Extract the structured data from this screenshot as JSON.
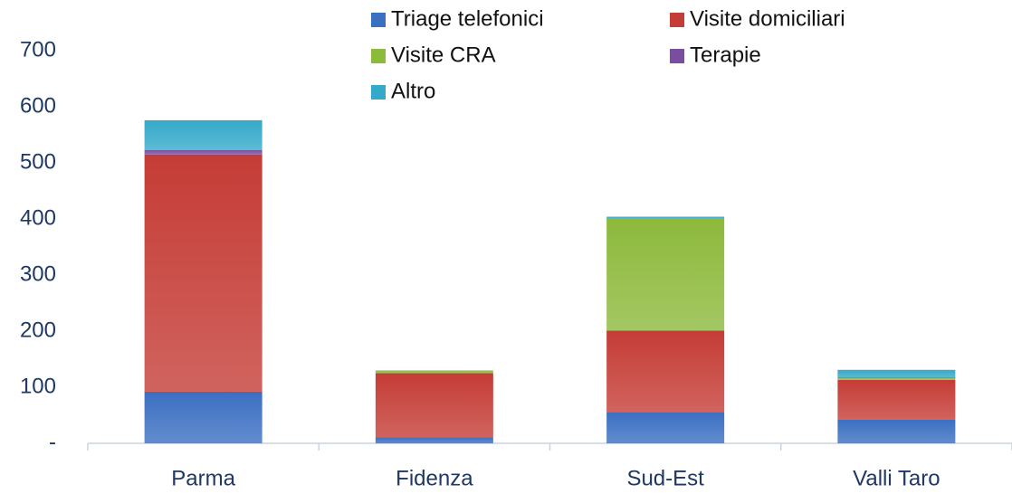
{
  "chart_data": {
    "type": "stacked_bar",
    "categories": [
      "Parma",
      "Fidenza",
      "Sud-Est",
      "Valli Taro"
    ],
    "series": [
      {
        "name": "Triage telefonici",
        "color": "#3b6fc2",
        "values": [
          92,
          11,
          56,
          42
        ]
      },
      {
        "name": "Visite domiciliari",
        "color": "#c53c36",
        "values": [
          423,
          114,
          145,
          71
        ]
      },
      {
        "name": "Visite CRA",
        "color": "#8db93c",
        "values": [
          0,
          5,
          199,
          3
        ]
      },
      {
        "name": "Terapie",
        "color": "#7a4e9e",
        "values": [
          8,
          0,
          0,
          1
        ]
      },
      {
        "name": "Altro",
        "color": "#35a9c9",
        "values": [
          53,
          0,
          4,
          14
        ]
      }
    ],
    "ylim": [
      0,
      700
    ],
    "yticks": [
      {
        "value": 0,
        "label": "-"
      },
      100,
      200,
      300,
      400,
      500,
      600,
      700
    ],
    "legend": "top"
  }
}
